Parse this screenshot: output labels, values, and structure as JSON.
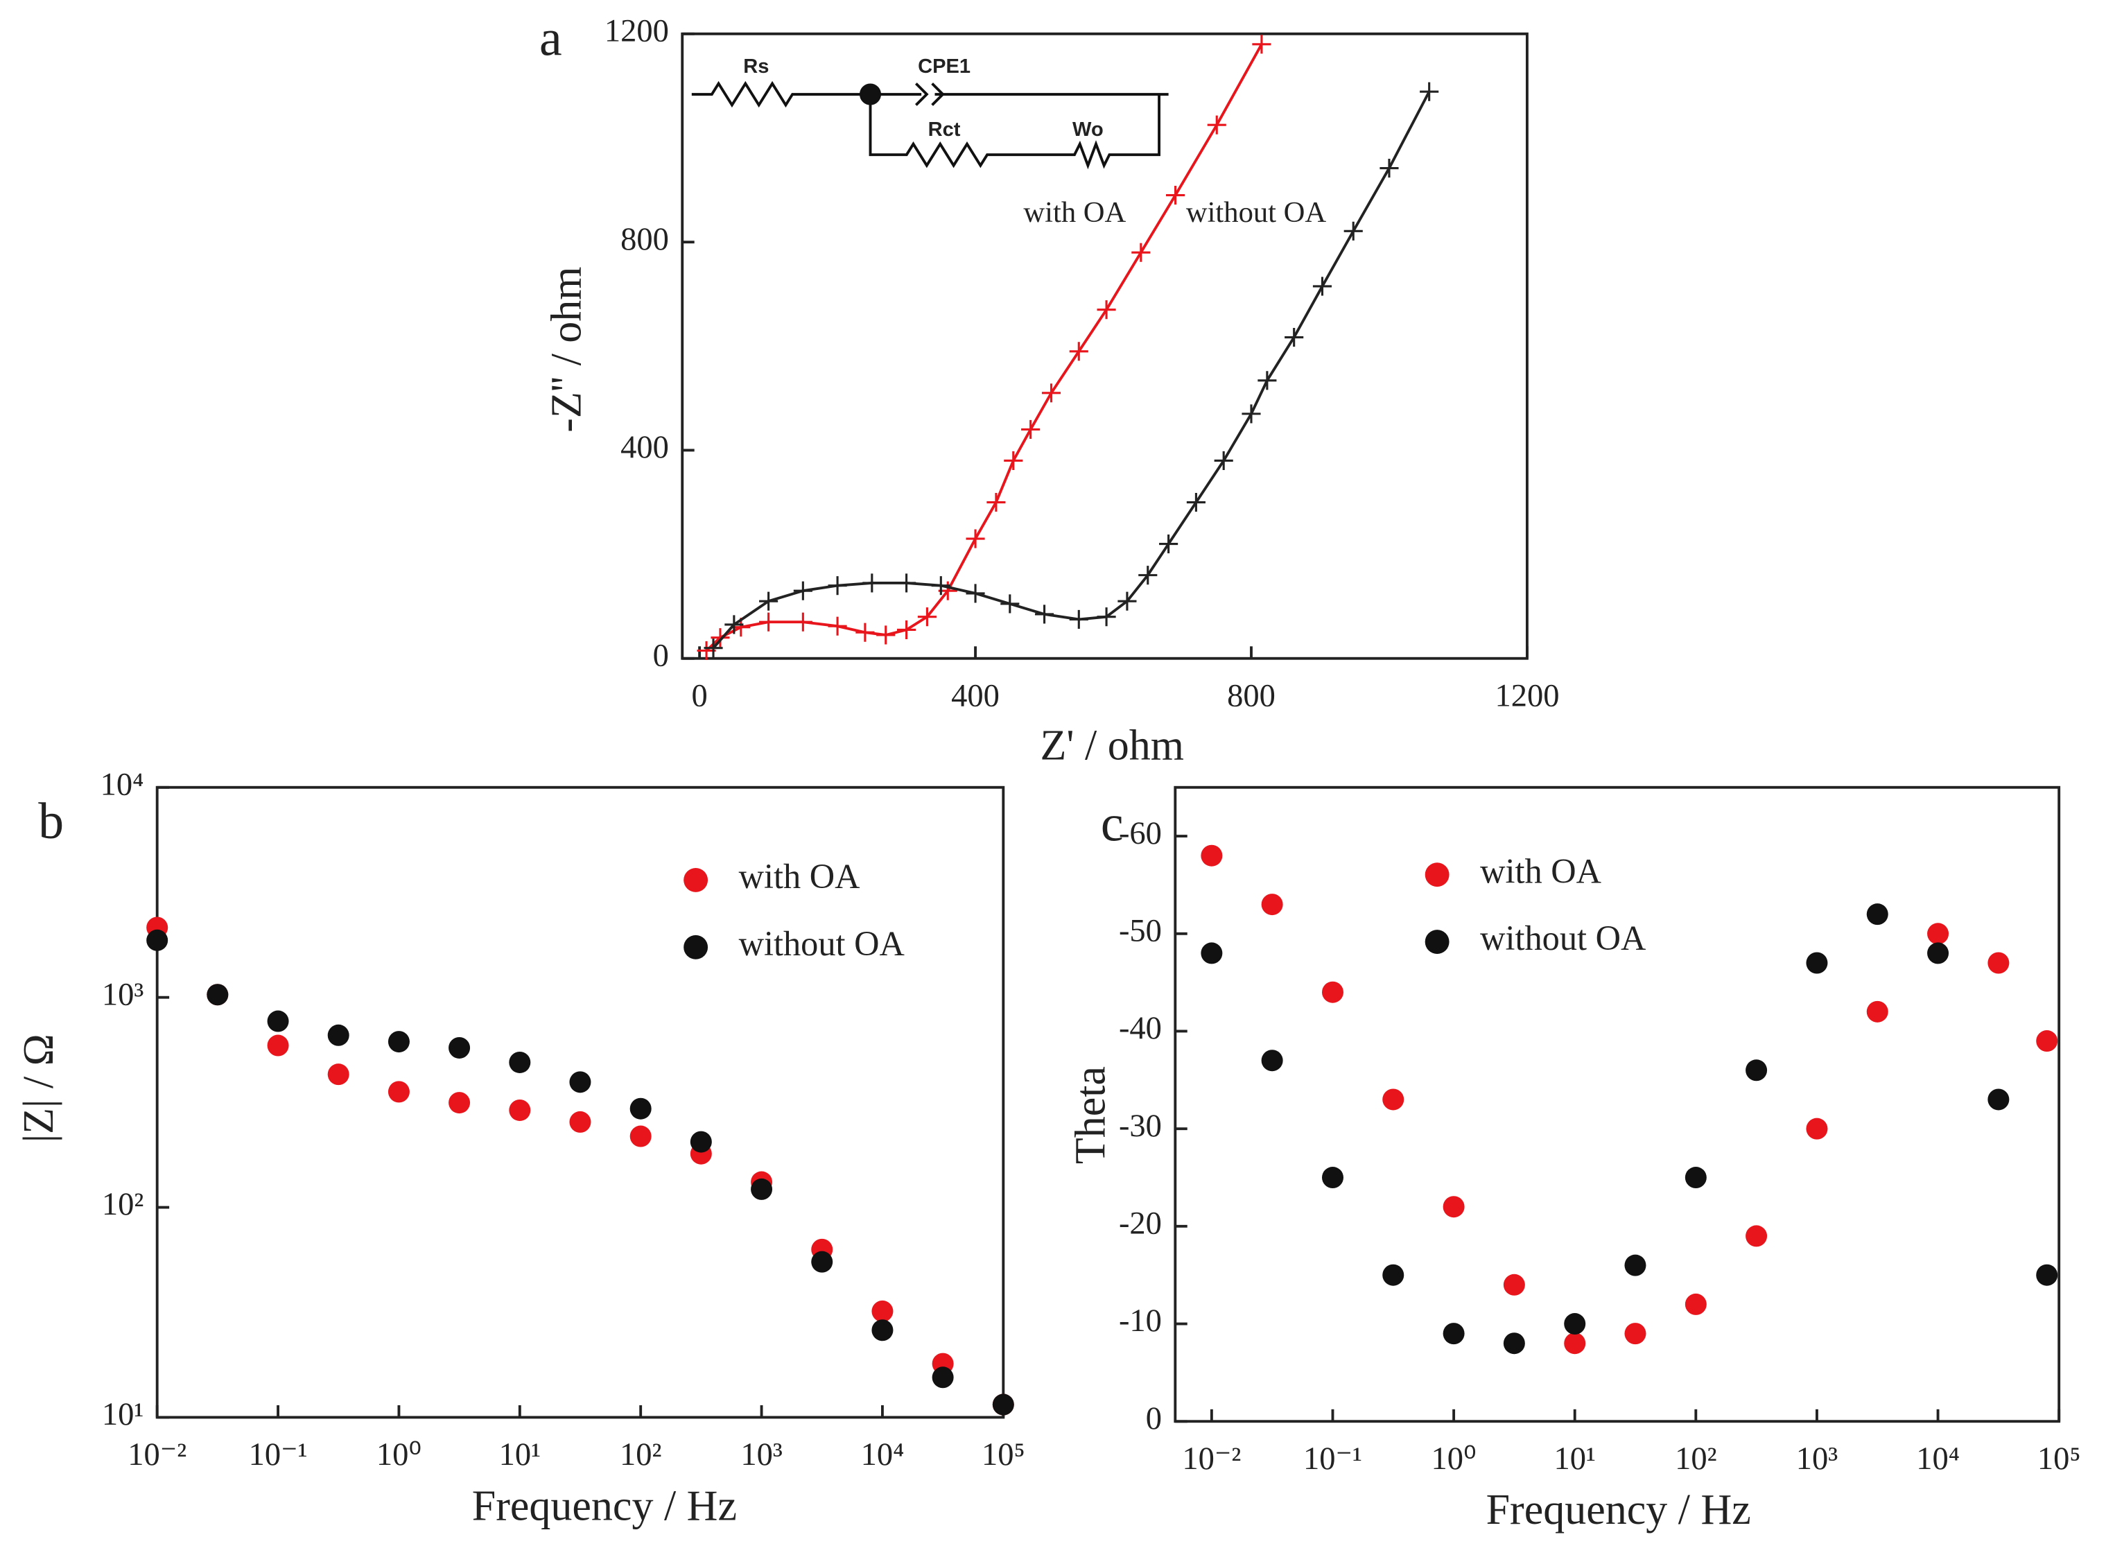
{
  "chart_data": [
    {
      "type": "scatter",
      "panel_label": "a",
      "xlabel": "Z' / ohm",
      "ylabel": "-Z'' / ohm",
      "xlim": [
        -25,
        1200
      ],
      "ylim": [
        0,
        1200
      ],
      "xticks": [
        0,
        400,
        800,
        1200
      ],
      "yticks": [
        0,
        400,
        800,
        1200
      ],
      "marker": "plus",
      "fit_line": true,
      "circuit_labels": [
        "Rs",
        "CPE1",
        "Rct",
        "Wo"
      ],
      "series": [
        {
          "name": "with OA",
          "color": "#e8161c",
          "x": [
            10,
            30,
            60,
            100,
            150,
            200,
            240,
            270,
            300,
            330,
            360,
            400,
            430,
            455,
            480,
            510,
            550,
            590,
            640,
            690,
            750,
            815
          ],
          "values": [
            15,
            40,
            60,
            70,
            70,
            62,
            50,
            45,
            55,
            80,
            130,
            230,
            300,
            380,
            440,
            510,
            590,
            670,
            780,
            890,
            1025,
            1180
          ]
        },
        {
          "name": "without OA",
          "color": "#222222",
          "x": [
            20,
            50,
            100,
            150,
            200,
            250,
            300,
            350,
            400,
            450,
            500,
            550,
            590,
            620,
            650,
            680,
            720,
            760,
            800,
            823,
            862,
            903,
            948,
            1000,
            1058
          ],
          "values": [
            20,
            65,
            110,
            130,
            140,
            145,
            145,
            140,
            125,
            105,
            85,
            75,
            80,
            110,
            160,
            220,
            300,
            380,
            470,
            534,
            617,
            715,
            821,
            942,
            1089
          ]
        }
      ]
    },
    {
      "type": "scatter",
      "panel_label": "b",
      "xlabel": "Frequency / Hz",
      "ylabel": "|Z| / Ω",
      "xscale": "log",
      "yscale": "log",
      "xlim": [
        0.01,
        100000
      ],
      "ylim": [
        10,
        10000
      ],
      "xticks": [
        {
          "value": 0.01,
          "label": "10⁻²"
        },
        {
          "value": 0.1,
          "label": "10⁻¹"
        },
        {
          "value": 1,
          "label": "10⁰"
        },
        {
          "value": 10,
          "label": "10¹"
        },
        {
          "value": 100,
          "label": "10²"
        },
        {
          "value": 1000,
          "label": "10³"
        },
        {
          "value": 10000,
          "label": "10⁴"
        },
        {
          "value": 100000,
          "label": "10⁵"
        }
      ],
      "yticks": [
        {
          "value": 10,
          "label": "10¹"
        },
        {
          "value": 100,
          "label": "10²"
        },
        {
          "value": 1000,
          "label": "10³"
        },
        {
          "value": 10000,
          "label": "10⁴"
        }
      ],
      "marker": "dot",
      "legend": "upper right",
      "series": [
        {
          "name": "with OA",
          "color": "#e8161c",
          "x": [
            0.01,
            0.0316,
            0.1,
            0.316,
            1,
            3.16,
            10,
            31.6,
            100,
            316,
            1000,
            3162,
            10000,
            31623,
            100000
          ],
          "values": [
            2150,
            1030,
            590,
            430,
            355,
            315,
            290,
            255,
            218,
            180,
            132,
            63,
            32,
            18,
            11.5
          ]
        },
        {
          "name": "without OA",
          "color": "#111111",
          "x": [
            0.01,
            0.0316,
            0.1,
            0.316,
            1,
            3.16,
            10,
            31.6,
            100,
            316,
            1000,
            3162,
            10000,
            31623,
            100000
          ],
          "values": [
            1870,
            1030,
            770,
            660,
            615,
            575,
            490,
            395,
            295,
            205,
            122,
            55,
            26,
            15.5,
            11.5
          ]
        }
      ]
    },
    {
      "type": "scatter",
      "panel_label": "c",
      "xlabel": "Frequency / Hz",
      "ylabel": "Theta",
      "xscale": "log",
      "xlim": [
        0.005,
        100000
      ],
      "ylim": [
        0,
        -65
      ],
      "xticks": [
        {
          "value": 0.01,
          "label": "10⁻²"
        },
        {
          "value": 0.1,
          "label": "10⁻¹"
        },
        {
          "value": 1,
          "label": "10⁰"
        },
        {
          "value": 10,
          "label": "10¹"
        },
        {
          "value": 100,
          "label": "10²"
        },
        {
          "value": 1000,
          "label": "10³"
        },
        {
          "value": 10000,
          "label": "10⁴"
        },
        {
          "value": 100000,
          "label": "10⁵"
        }
      ],
      "yticks": [
        0,
        -10,
        -20,
        -30,
        -40,
        -50,
        -60
      ],
      "marker": "dot",
      "legend": "upper center",
      "series": [
        {
          "name": "with OA",
          "color": "#e8161c",
          "x": [
            0.01,
            0.0316,
            0.1,
            0.316,
            1,
            3.16,
            10,
            31.6,
            100,
            316,
            1000,
            3162,
            10000,
            31623,
            79433
          ],
          "values": [
            -58,
            -53,
            -44,
            -33,
            -22,
            -14,
            -8,
            -9,
            -12,
            -19,
            -30,
            -42,
            -50,
            -47,
            -39
          ]
        },
        {
          "name": "without OA",
          "color": "#111111",
          "x": [
            0.01,
            0.0316,
            0.1,
            0.316,
            1,
            3.16,
            10,
            31.6,
            100,
            316,
            1000,
            3162,
            10000,
            31623,
            79433
          ],
          "values": [
            -48,
            -37,
            -25,
            -15,
            -9,
            -8,
            -10,
            -16,
            -25,
            -36,
            -47,
            -52,
            -48,
            -33,
            -15
          ]
        }
      ]
    }
  ]
}
